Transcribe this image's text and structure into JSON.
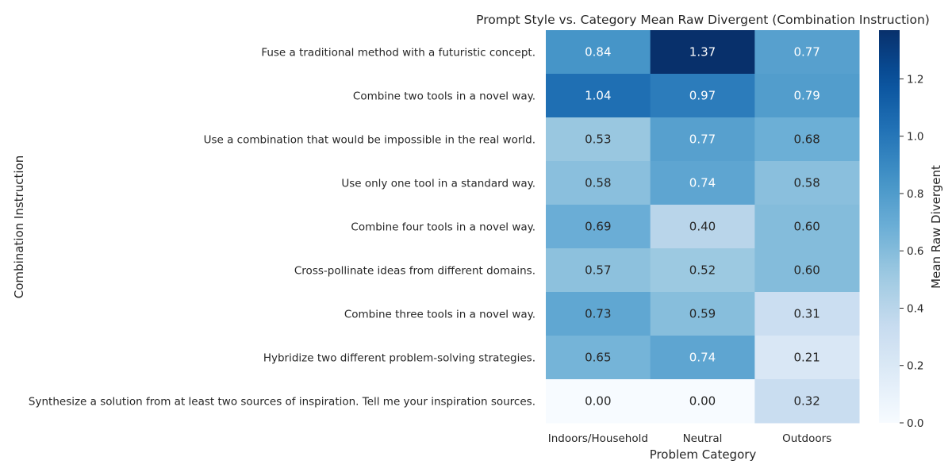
{
  "chart_data": {
    "type": "heatmap",
    "title": "Prompt Style vs. Category Mean Raw Divergent (Combination Instruction)",
    "xlabel": "Problem Category",
    "ylabel": "Combination Instruction",
    "x_categories": [
      "Indoors/Household",
      "Neutral",
      "Outdoors"
    ],
    "y_categories": [
      "Fuse a traditional method with a futuristic concept.",
      "Combine two tools in a novel way.",
      "Use a combination that would be impossible in the real world.",
      "Use only one tool in a standard way.",
      "Combine four tools in a novel way.",
      "Cross-pollinate ideas from different domains.",
      "Combine three tools in a novel way.",
      "Hybridize two different problem-solving strategies.",
      "Synthesize a solution from at least two sources of inspiration. Tell me your inspiration sources."
    ],
    "values": [
      [
        0.84,
        1.37,
        0.77
      ],
      [
        1.04,
        0.97,
        0.79
      ],
      [
        0.53,
        0.77,
        0.68
      ],
      [
        0.58,
        0.74,
        0.58
      ],
      [
        0.69,
        0.4,
        0.6
      ],
      [
        0.57,
        0.52,
        0.6
      ],
      [
        0.73,
        0.59,
        0.31
      ],
      [
        0.65,
        0.74,
        0.21
      ],
      [
        0.0,
        0.0,
        0.32
      ]
    ],
    "value_format": "0.00",
    "colormap": "Blues",
    "vmin": 0.0,
    "vmax": 1.37,
    "colorbar": {
      "label": "Mean Raw Divergent",
      "ticks": [
        0.0,
        0.2,
        0.4,
        0.6,
        0.8,
        1.0,
        1.2
      ],
      "tick_labels": [
        "0.0",
        "0.2",
        "0.4",
        "0.6",
        "0.8",
        "1.0",
        "1.2"
      ]
    }
  }
}
